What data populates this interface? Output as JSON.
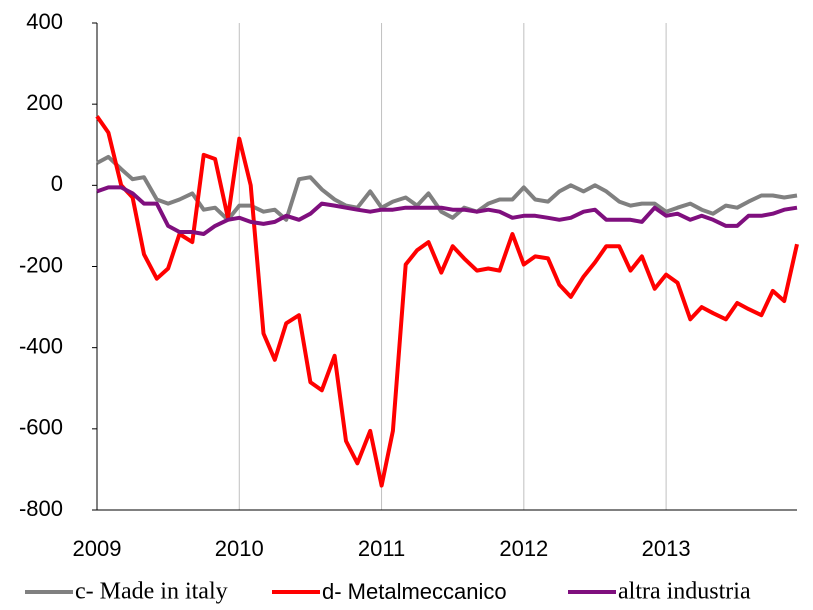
{
  "chart_data": {
    "type": "line",
    "x": [
      2009,
      2009.08,
      2009.17,
      2009.25,
      2009.33,
      2009.42,
      2009.5,
      2009.58,
      2009.67,
      2009.75,
      2009.83,
      2009.92,
      2010,
      2010.08,
      2010.17,
      2010.25,
      2010.33,
      2010.42,
      2010.5,
      2010.58,
      2010.67,
      2010.75,
      2010.83,
      2010.92,
      2011,
      2011.08,
      2011.17,
      2011.25,
      2011.33,
      2011.42,
      2011.5,
      2011.58,
      2011.67,
      2011.75,
      2011.83,
      2011.92,
      2012,
      2012.08,
      2012.17,
      2012.25,
      2012.33,
      2012.42,
      2012.5,
      2012.58,
      2012.67,
      2012.75,
      2012.83,
      2012.92,
      2013,
      2013.08,
      2013.17,
      2013.25,
      2013.33,
      2013.42,
      2013.5,
      2013.58,
      2013.67,
      2013.75,
      2013.83,
      2013.92
    ],
    "series": [
      {
        "name": "c- Made in italy",
        "color": "#808080",
        "values": [
          55,
          70,
          40,
          15,
          20,
          -35,
          -45,
          -35,
          -20,
          -60,
          -55,
          -85,
          -50,
          -50,
          -65,
          -60,
          -85,
          15,
          20,
          -10,
          -35,
          -50,
          -55,
          -15,
          -55,
          -40,
          -30,
          -50,
          -20,
          -65,
          -80,
          -55,
          -65,
          -45,
          -35,
          -35,
          -5,
          -35,
          -40,
          -15,
          0,
          -15,
          0,
          -15,
          -40,
          -50,
          -45,
          -45,
          -65,
          -55,
          -45,
          -60,
          -70,
          -50,
          -55,
          -40,
          -25,
          -25,
          -30,
          -25
        ]
      },
      {
        "name": "d- Metalmeccanico",
        "color": "#ff0000",
        "values": [
          170,
          130,
          0,
          -30,
          -170,
          -230,
          -205,
          -120,
          -140,
          75,
          65,
          -80,
          115,
          0,
          -365,
          -430,
          -340,
          -320,
          -485,
          -505,
          -420,
          -630,
          -685,
          -605,
          -740,
          -605,
          -195,
          -160,
          -140,
          -215,
          -150,
          -180,
          -210,
          -205,
          -210,
          -120,
          -195,
          -175,
          -180,
          -245,
          -275,
          -225,
          -190,
          -150,
          -150,
          -210,
          -175,
          -255,
          -220,
          -240,
          -330,
          -300,
          -315,
          -330,
          -290,
          -305,
          -320,
          -260,
          -285,
          -145
        ]
      },
      {
        "name": "altra industria",
        "color": "#7f0f7e",
        "values": [
          -15,
          -5,
          -5,
          -20,
          -45,
          -45,
          -100,
          -115,
          -115,
          -120,
          -100,
          -85,
          -80,
          -90,
          -95,
          -90,
          -75,
          -85,
          -70,
          -45,
          -50,
          -55,
          -60,
          -65,
          -60,
          -60,
          -55,
          -55,
          -55,
          -55,
          -60,
          -60,
          -65,
          -60,
          -65,
          -80,
          -75,
          -75,
          -80,
          -85,
          -80,
          -65,
          -60,
          -85,
          -85,
          -85,
          -90,
          -55,
          -75,
          -70,
          -85,
          -75,
          -85,
          -100,
          -100,
          -75,
          -75,
          -70,
          -60,
          -55
        ]
      }
    ],
    "xlim": [
      2009,
      2013.92
    ],
    "xticks": [
      2009,
      2010,
      2011,
      2012,
      2013
    ],
    "ylim": [
      -800,
      400
    ],
    "yticks": [
      -800,
      -600,
      -400,
      -200,
      0,
      200,
      400
    ],
    "grid": true,
    "legend": "bottom"
  }
}
